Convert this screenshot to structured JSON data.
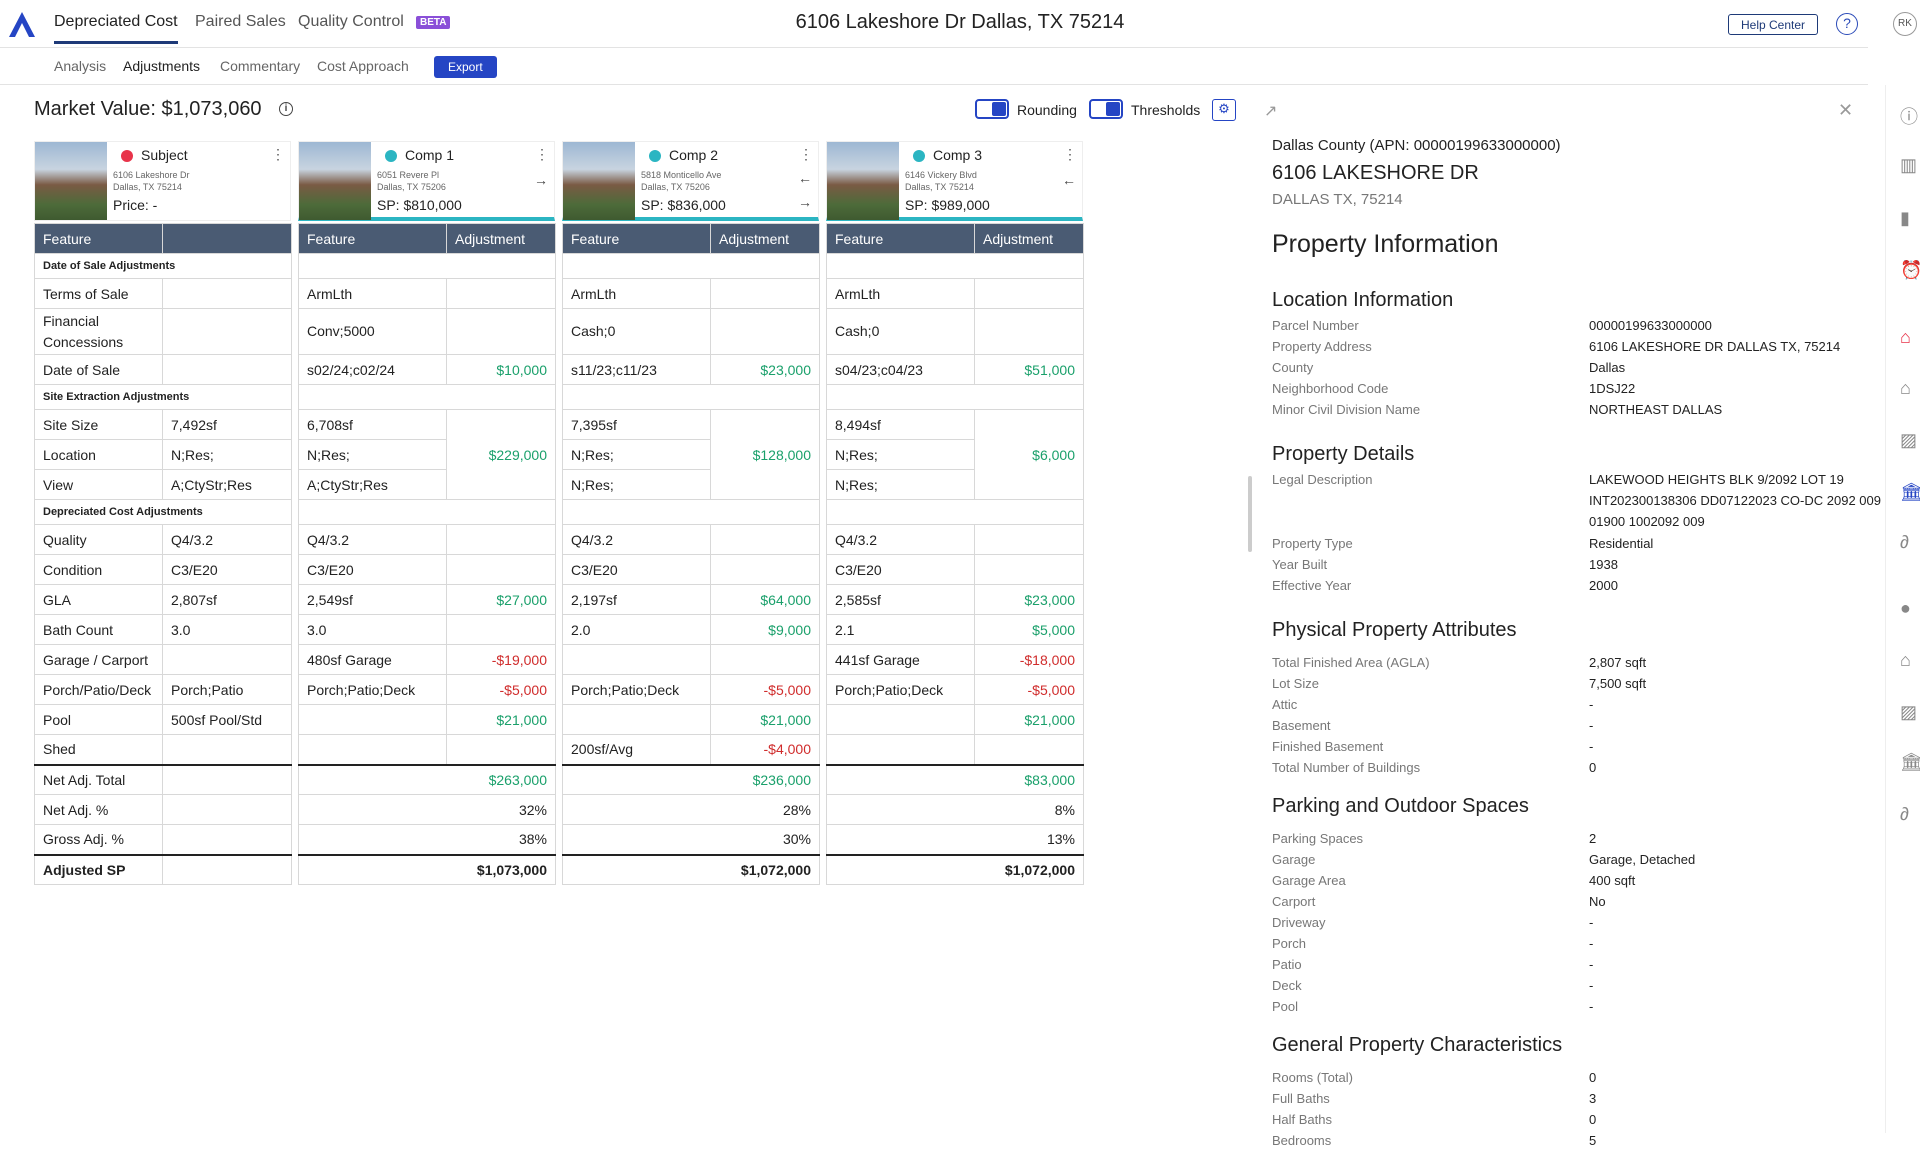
{
  "topnav": {
    "tabs": [
      "Depreciated Cost",
      "Paired Sales",
      "Quality Control"
    ],
    "beta": "BETA",
    "title": "6106 Lakeshore Dr Dallas, TX 75214",
    "help": "Help Center",
    "help_icon": "?",
    "avatar": "RK"
  },
  "subnav": {
    "tabs": [
      "Analysis",
      "Adjustments",
      "Commentary",
      "Cost Approach"
    ],
    "export": "Export"
  },
  "market": {
    "title": "Market Value: $1,073,060",
    "rounding": "Rounding",
    "thresholds": "Thresholds"
  },
  "cards": [
    {
      "name": "Subject",
      "addr1": "6106 Lakeshore Dr",
      "addr2": "Dallas, TX 75214",
      "price": "Price: -",
      "color": "#e8344a"
    },
    {
      "name": "Comp 1",
      "addr1": "6051 Revere Pl",
      "addr2": "Dallas, TX 75206",
      "price": "SP: $810,000",
      "color": "#2bb5c2"
    },
    {
      "name": "Comp 2",
      "addr1": "5818 Monticello Ave",
      "addr2": "Dallas, TX 75206",
      "price": "SP: $836,000",
      "color": "#2bb5c2"
    },
    {
      "name": "Comp 3",
      "addr1": "6146 Vickery Blvd",
      "addr2": "Dallas, TX 75214",
      "price": "SP: $989,000",
      "color": "#2bb5c2"
    }
  ],
  "headers": {
    "feature": "Feature",
    "adjustment": "Adjustment"
  },
  "sections": {
    "date": "Date of Sale Adjustments",
    "site": "Site Extraction Adjustments",
    "depr": "Depreciated Cost Adjustments"
  },
  "rows": {
    "terms": {
      "label": "Terms of Sale",
      "subject": "",
      "c": [
        [
          "ArmLth",
          ""
        ],
        [
          "ArmLth",
          ""
        ],
        [
          "ArmLth",
          ""
        ]
      ]
    },
    "fin": {
      "label": "Financial Concessions",
      "subject": "",
      "c": [
        [
          "Conv;5000",
          ""
        ],
        [
          "Cash;0",
          ""
        ],
        [
          "Cash;0",
          ""
        ]
      ]
    },
    "date": {
      "label": "Date of Sale",
      "subject": "",
      "c": [
        [
          "s02/24;c02/24",
          "$10,000"
        ],
        [
          "s11/23;c11/23",
          "$23,000"
        ],
        [
          "s04/23;c04/23",
          "$51,000"
        ]
      ]
    },
    "site": {
      "label": "Site Size",
      "subject": "7,492sf",
      "c": [
        "6,708sf",
        "7,395sf",
        "8,494sf"
      ]
    },
    "loc": {
      "label": "Location",
      "subject": "N;Res;",
      "c": [
        "N;Res;",
        "N;Res;",
        "N;Res;"
      ]
    },
    "view": {
      "label": "View",
      "subject": "A;CtyStr;Res",
      "c": [
        "A;CtyStr;Res",
        "N;Res;",
        "N;Res;"
      ]
    },
    "site_adj": [
      "$229,000",
      "$128,000",
      "$6,000"
    ],
    "quality": {
      "label": "Quality",
      "subject": "Q4/3.2",
      "c": [
        [
          "Q4/3.2",
          ""
        ],
        [
          "Q4/3.2",
          ""
        ],
        [
          "Q4/3.2",
          ""
        ]
      ]
    },
    "cond": {
      "label": "Condition",
      "subject": "C3/E20",
      "c": [
        [
          "C3/E20",
          ""
        ],
        [
          "C3/E20",
          ""
        ],
        [
          "C3/E20",
          ""
        ]
      ]
    },
    "gla": {
      "label": "GLA",
      "subject": "2,807sf",
      "c": [
        [
          "2,549sf",
          "$27,000"
        ],
        [
          "2,197sf",
          "$64,000"
        ],
        [
          "2,585sf",
          "$23,000"
        ]
      ]
    },
    "bath": {
      "label": "Bath Count",
      "subject": "3.0",
      "c": [
        [
          "3.0",
          ""
        ],
        [
          "2.0",
          "$9,000"
        ],
        [
          "2.1",
          "$5,000"
        ]
      ]
    },
    "garage": {
      "label": "Garage / Carport",
      "subject": "",
      "c": [
        [
          "480sf Garage",
          "-$19,000"
        ],
        [
          "",
          ""
        ],
        [
          "441sf Garage",
          "-$18,000"
        ]
      ]
    },
    "porch": {
      "label": "Porch/Patio/Deck",
      "subject": "Porch;Patio",
      "c": [
        [
          "Porch;Patio;Deck",
          "-$5,000"
        ],
        [
          "Porch;Patio;Deck",
          "-$5,000"
        ],
        [
          "Porch;Patio;Deck",
          "-$5,000"
        ]
      ]
    },
    "pool": {
      "label": "Pool",
      "subject": "500sf Pool/Std",
      "c": [
        [
          "",
          "$21,000"
        ],
        [
          "",
          "$21,000"
        ],
        [
          "",
          "$21,000"
        ]
      ]
    },
    "shed": {
      "label": "Shed",
      "subject": "",
      "c": [
        [
          "",
          ""
        ],
        [
          "200sf/Avg",
          "-$4,000"
        ],
        [
          "",
          ""
        ]
      ]
    },
    "net": {
      "label": "Net Adj. Total",
      "c": [
        "$263,000",
        "$236,000",
        "$83,000"
      ]
    },
    "netp": {
      "label": "Net Adj. %",
      "c": [
        "32%",
        "28%",
        "8%"
      ]
    },
    "gross": {
      "label": "Gross Adj. %",
      "c": [
        "38%",
        "30%",
        "13%"
      ]
    },
    "adjsp": {
      "label": "Adjusted SP",
      "c": [
        "$1,073,000",
        "$1,072,000",
        "$1,072,000"
      ]
    }
  },
  "panel": {
    "county": "Dallas County (APN: 00000199633000000)",
    "street": "6106 LAKESHORE DR",
    "city": "DALLAS TX, 75214",
    "title": "Property Information",
    "loc_title": "Location Information",
    "loc": [
      [
        "Parcel Number",
        "00000199633000000"
      ],
      [
        "Property Address",
        "6106 LAKESHORE DR DALLAS TX, 75214"
      ],
      [
        "County",
        "Dallas"
      ],
      [
        "Neighborhood Code",
        "1DSJ22"
      ],
      [
        "Minor Civil Division Name",
        "NORTHEAST DALLAS"
      ]
    ],
    "det_title": "Property Details",
    "legal_label": "Legal Description",
    "legal": "LAKEWOOD HEIGHTS BLK 9/2092 LOT 19 INT202300138306 DD07122023 CO-DC 2092 009 01900 1002092 009",
    "det": [
      [
        "Property Type",
        "Residential"
      ],
      [
        "Year Built",
        "1938"
      ],
      [
        "Effective Year",
        "2000"
      ]
    ],
    "phys_title": "Physical Property Attributes",
    "phys": [
      [
        "Total Finished Area (AGLA)",
        "2,807 sqft"
      ],
      [
        "Lot Size",
        "7,500 sqft"
      ],
      [
        "Attic",
        "-"
      ],
      [
        "Basement",
        "-"
      ],
      [
        "Finished Basement",
        "-"
      ],
      [
        "Total Number of Buildings",
        "0"
      ]
    ],
    "park_title": "Parking and Outdoor Spaces",
    "park": [
      [
        "Parking Spaces",
        "2"
      ],
      [
        "Garage",
        "Garage, Detached"
      ],
      [
        "Garage Area",
        "400 sqft"
      ],
      [
        "Carport",
        "No"
      ],
      [
        "Driveway",
        "-"
      ],
      [
        "Porch",
        "-"
      ],
      [
        "Patio",
        "-"
      ],
      [
        "Deck",
        "-"
      ],
      [
        "Pool",
        "-"
      ]
    ],
    "gen_title": "General Property Characteristics",
    "gen": [
      [
        "Rooms (Total)",
        "0"
      ],
      [
        "Full Baths",
        "3"
      ],
      [
        "Half Baths",
        "0"
      ],
      [
        "Bedrooms",
        "5"
      ]
    ]
  },
  "colors": {
    "accent": "#2545c4",
    "header": "#4a5b73",
    "positive": "#1aa06b",
    "negative": "#d02c2c",
    "comp": "#2bb5c2",
    "subject": "#e8344a"
  }
}
